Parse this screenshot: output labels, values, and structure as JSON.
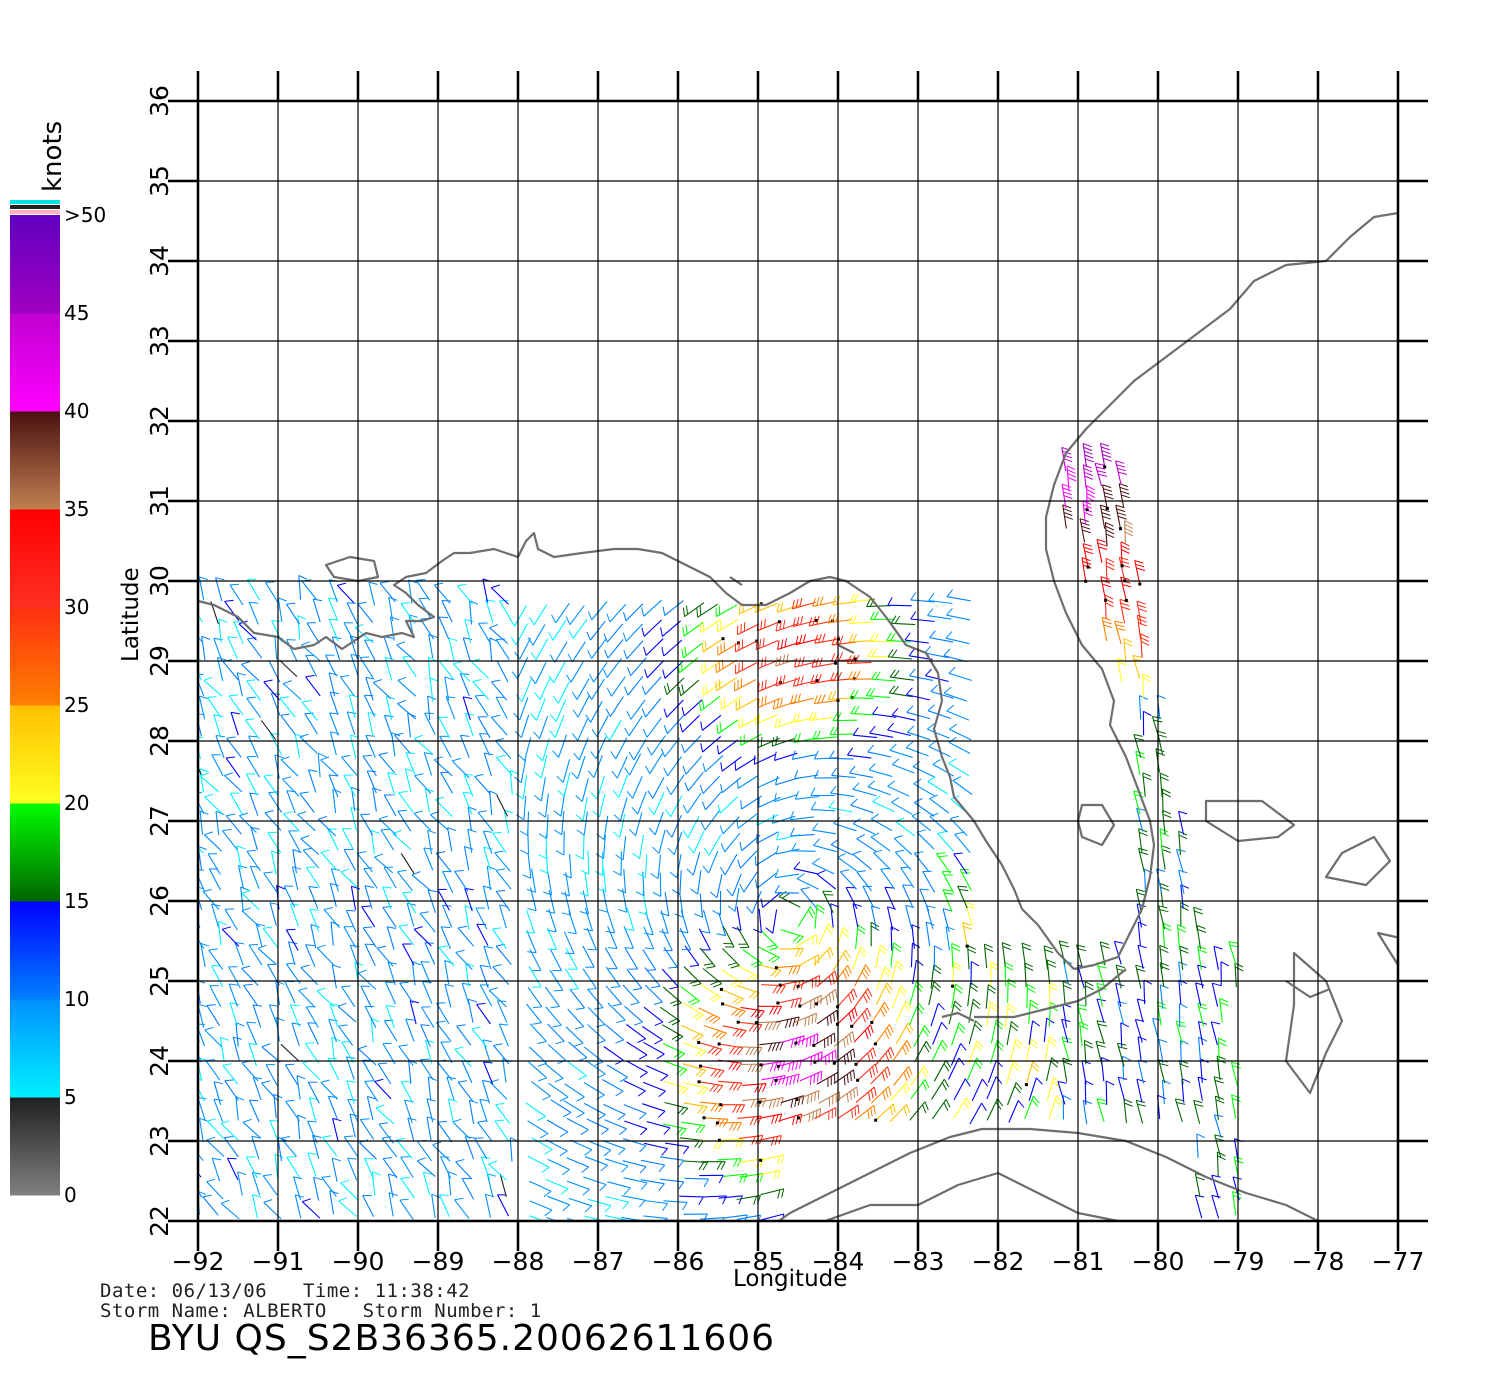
{
  "map": {
    "x_ticks": [
      "-92",
      "-91",
      "-90",
      "-89",
      "-88",
      "-87",
      "-86",
      "-85",
      "-84",
      "-83",
      "-82",
      "-81",
      "-80",
      "-79",
      "-78",
      "-77"
    ],
    "y_ticks": [
      "22",
      "23",
      "24",
      "25",
      "26",
      "27",
      "28",
      "29",
      "30",
      "31",
      "32",
      "33",
      "34",
      "35",
      "36"
    ],
    "lon_range": [
      -92,
      -77
    ],
    "lat_range": [
      22,
      36
    ],
    "xlabel": "Longitude",
    "ylabel": "Latitude",
    "coastline_color": "#6e6e6e",
    "grid_color": "#000000"
  },
  "colorbar": {
    "units": "knots",
    "labels": [
      ">50",
      "45",
      "40",
      "35",
      "30",
      "25",
      "20",
      "15",
      "10",
      "5",
      "0"
    ],
    "stops": [
      {
        "from": 0,
        "to": 5,
        "colors": [
          "#808080",
          "#202020"
        ]
      },
      {
        "from": 5,
        "to": 10,
        "colors": [
          "#00f0ff",
          "#0090ff"
        ]
      },
      {
        "from": 10,
        "to": 15,
        "colors": [
          "#0080ff",
          "#0000ff"
        ]
      },
      {
        "from": 15,
        "to": 20,
        "colors": [
          "#006400",
          "#00ff00"
        ]
      },
      {
        "from": 20,
        "to": 25,
        "colors": [
          "#ffff20",
          "#ffc000"
        ]
      },
      {
        "from": 25,
        "to": 30,
        "colors": [
          "#ff8000",
          "#ff3010"
        ]
      },
      {
        "from": 30,
        "to": 35,
        "colors": [
          "#ff3020",
          "#ff0000"
        ]
      },
      {
        "from": 35,
        "to": 40,
        "colors": [
          "#c08050",
          "#4a1010"
        ]
      },
      {
        "from": 40,
        "to": 45,
        "colors": [
          "#ff00ff",
          "#c000d0"
        ]
      },
      {
        "from": 45,
        "to": 50,
        "colors": [
          "#a000c0",
          "#6000c0"
        ]
      }
    ]
  },
  "info": {
    "line1": "Date: 06/13/06   Time: 11:38:42",
    "line2": "Storm Name: ALBERTO   Storm Number: 1",
    "title": "BYU QS_S2B36365.20062611606"
  }
}
